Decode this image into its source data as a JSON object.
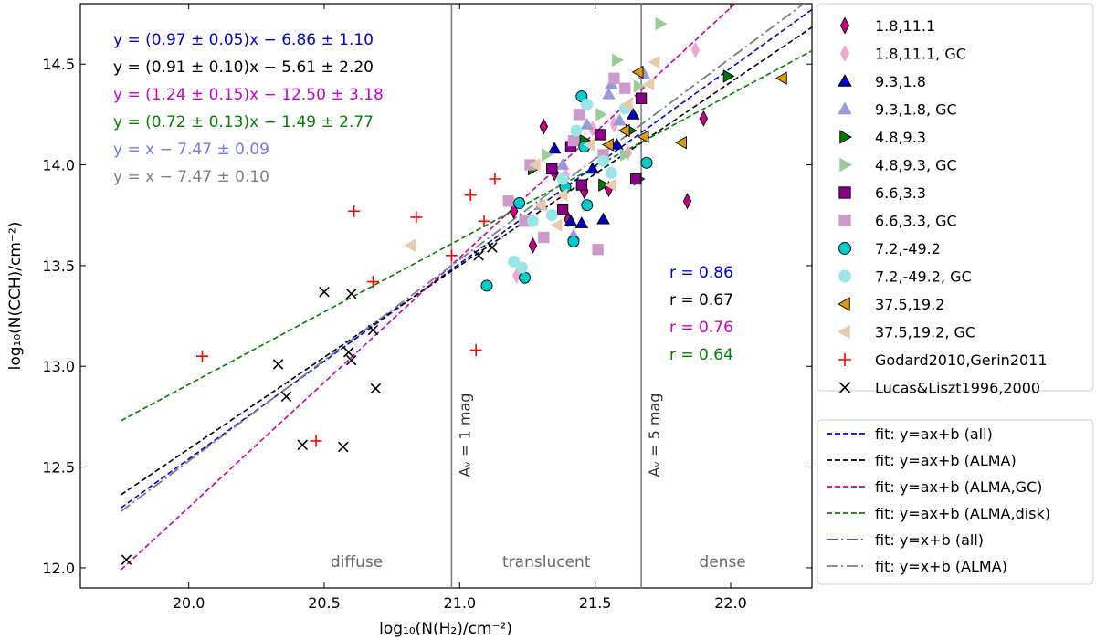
{
  "chart_data": {
    "type": "scatter",
    "title": "",
    "xlabel": "log₁₀(N(H₂)/cm⁻²)",
    "ylabel": "log₁₀(N(CCH)/cm⁻²)",
    "xlim": [
      19.6,
      22.3
    ],
    "ylim": [
      11.9,
      14.8
    ],
    "xticks": [
      "20.0",
      "20.5",
      "21.0",
      "21.5",
      "22.0"
    ],
    "yticks": [
      "12.0",
      "12.5",
      "13.0",
      "13.5",
      "14.0",
      "14.5"
    ],
    "xtick_values": [
      20.0,
      20.5,
      21.0,
      21.5,
      22.0
    ],
    "ytick_values": [
      12.0,
      12.5,
      13.0,
      13.5,
      14.0,
      14.5
    ],
    "vlines": [
      {
        "x": 20.97,
        "label": "Aᵥ = 1 mag"
      },
      {
        "x": 21.67,
        "label": "Aᵥ = 5 mag"
      }
    ],
    "regions": [
      {
        "label": "diffuse",
        "x": 20.62
      },
      {
        "label": "translucent",
        "x": 21.32
      },
      {
        "label": "dense",
        "x": 21.97
      }
    ],
    "equations": [
      {
        "text": "y = (0.97 ± 0.05)x − 6.86 ± 1.10",
        "color": "#0000dd"
      },
      {
        "text": "y = (0.91 ± 0.10)x − 5.61 ± 2.20",
        "color": "#000000"
      },
      {
        "text": "y = (1.24 ± 0.15)x − 12.50 ± 3.18",
        "color": "#cc00cc"
      },
      {
        "text": "y = (0.72 ± 0.13)x − 1.49 ± 2.77",
        "color": "#008000"
      },
      {
        "text": "y = x − 7.47 ± 0.09",
        "color": "#7777ee"
      },
      {
        "text": "y = x − 7.47 ± 0.10",
        "color": "#808080"
      }
    ],
    "correlations": [
      {
        "text": "r = 0.86",
        "color": "#0000dd"
      },
      {
        "text": "r = 0.67",
        "color": "#000000"
      },
      {
        "text": "r = 0.76",
        "color": "#cc00cc"
      },
      {
        "text": "r = 0.64",
        "color": "#008000"
      }
    ],
    "fits": [
      {
        "name": "fit: y=ax+b (all)",
        "slope": 0.97,
        "intercept": -6.86,
        "color": "#0000dd",
        "style": "dashed",
        "x_range": [
          19.75,
          22.3
        ]
      },
      {
        "name": "fit: y=ax+b (ALMA)",
        "slope": 0.91,
        "intercept": -5.61,
        "color": "#000000",
        "style": "dashed",
        "x_range": [
          19.75,
          22.3
        ]
      },
      {
        "name": "fit: y=ax+b (ALMA,GC)",
        "slope": 1.24,
        "intercept": -12.5,
        "color": "#cc0099",
        "style": "dashed",
        "x_range": [
          19.75,
          22.3
        ]
      },
      {
        "name": "fit: y=ax+b (ALMA,disk)",
        "slope": 0.72,
        "intercept": -1.49,
        "color": "#008000",
        "style": "dashed",
        "x_range": [
          19.75,
          22.3
        ]
      },
      {
        "name": "fit: y=x+b (all)",
        "slope": 1.0,
        "intercept": -7.47,
        "color": "#3333cc",
        "style": "dashdot",
        "x_range": [
          19.75,
          22.3
        ]
      },
      {
        "name": "fit: y=x+b (ALMA)",
        "slope": 1.0,
        "intercept": -7.47,
        "color": "#808080",
        "style": "dashdot",
        "x_range": [
          19.75,
          22.3
        ]
      }
    ],
    "series": [
      {
        "name": "1.8,11.1",
        "marker": "diamond",
        "fill": "#cc0088",
        "stroke": "#000000",
        "points": [
          [
            21.31,
            14.19
          ],
          [
            21.2,
            13.77
          ],
          [
            21.46,
            13.87
          ],
          [
            21.84,
            13.82
          ],
          [
            21.9,
            14.23
          ],
          [
            21.27,
            13.6
          ],
          [
            21.4,
            13.73
          ],
          [
            21.55,
            13.88
          ],
          [
            21.35,
            13.96
          ]
        ]
      },
      {
        "name": "1.8,11.1, GC",
        "marker": "diamond",
        "fill": "#f0a8d0",
        "stroke": "#f0a8d0",
        "points": [
          [
            21.87,
            14.57
          ],
          [
            21.21,
            13.45
          ],
          [
            21.49,
            14.18
          ],
          [
            21.57,
            14.2
          ],
          [
            21.62,
            14.06
          ],
          [
            21.39,
            13.95
          ],
          [
            21.46,
            14.3
          ]
        ]
      },
      {
        "name": "9.3,1.8",
        "marker": "triangle-up",
        "fill": "#0000cc",
        "stroke": "#000000",
        "points": [
          [
            21.35,
            14.08
          ],
          [
            21.41,
            13.72
          ],
          [
            21.45,
            13.71
          ],
          [
            21.58,
            14.1
          ],
          [
            21.64,
            14.25
          ],
          [
            21.49,
            13.98
          ],
          [
            21.53,
            13.73
          ]
        ]
      },
      {
        "name": "9.3,1.8, GC",
        "marker": "triangle-up",
        "fill": "#9999dd",
        "stroke": "#9999dd",
        "points": [
          [
            21.55,
            14.35
          ],
          [
            21.47,
            14.2
          ],
          [
            21.59,
            14.22
          ],
          [
            21.3,
            13.8
          ],
          [
            21.42,
            13.65
          ],
          [
            21.56,
            14.4
          ],
          [
            21.68,
            14.45
          ],
          [
            21.38,
            14.0
          ]
        ]
      },
      {
        "name": "4.8,9.3",
        "marker": "triangle-right",
        "fill": "#007700",
        "stroke": "#000000",
        "points": [
          [
            21.99,
            14.44
          ],
          [
            21.63,
            14.17
          ],
          [
            21.53,
            13.9
          ],
          [
            21.27,
            13.98
          ],
          [
            21.46,
            14.12
          ],
          [
            21.66,
            13.93
          ]
        ]
      },
      {
        "name": "4.8,9.3, GC",
        "marker": "triangle-right",
        "fill": "#99cc99",
        "stroke": "#99cc99",
        "points": [
          [
            21.74,
            14.7
          ],
          [
            21.58,
            14.52
          ],
          [
            21.66,
            14.39
          ],
          [
            21.32,
            14.05
          ],
          [
            21.52,
            14.25
          ],
          [
            21.61,
            14.05
          ]
        ]
      },
      {
        "name": "6.6,3.3",
        "marker": "square",
        "fill": "#880088",
        "stroke": "#000000",
        "points": [
          [
            21.38,
            13.78
          ],
          [
            21.41,
            14.09
          ],
          [
            21.52,
            14.15
          ],
          [
            21.67,
            14.33
          ],
          [
            21.65,
            13.93
          ],
          [
            21.34,
            13.98
          ],
          [
            21.45,
            13.9
          ]
        ]
      },
      {
        "name": "6.6,3.3, GC",
        "marker": "square",
        "fill": "#cc99cc",
        "stroke": "#cc99cc",
        "points": [
          [
            21.24,
            13.72
          ],
          [
            21.51,
            13.58
          ],
          [
            21.31,
            13.64
          ],
          [
            21.26,
            14.0
          ],
          [
            21.44,
            14.25
          ],
          [
            21.57,
            14.43
          ],
          [
            21.61,
            14.38
          ],
          [
            21.53,
            14.05
          ],
          [
            21.42,
            14.12
          ],
          [
            21.18,
            13.82
          ]
        ]
      },
      {
        "name": "7.2,-49.2",
        "marker": "circle",
        "fill": "#00cccc",
        "stroke": "#000000",
        "points": [
          [
            21.1,
            13.4
          ],
          [
            21.24,
            13.44
          ],
          [
            21.22,
            13.81
          ],
          [
            21.45,
            14.34
          ],
          [
            21.42,
            13.62
          ],
          [
            21.47,
            13.8
          ],
          [
            21.69,
            14.01
          ],
          [
            21.39,
            13.89
          ],
          [
            21.46,
            14.09
          ]
        ]
      },
      {
        "name": "7.2,-49.2, GC",
        "marker": "circle",
        "fill": "#99e6e6",
        "stroke": "#99e6e6",
        "points": [
          [
            21.2,
            13.52
          ],
          [
            21.23,
            13.49
          ],
          [
            21.27,
            13.72
          ],
          [
            21.53,
            14.02
          ],
          [
            21.47,
            14.3
          ],
          [
            21.38,
            13.93
          ],
          [
            21.61,
            14.28
          ],
          [
            21.43,
            14.17
          ],
          [
            21.56,
            13.96
          ],
          [
            21.34,
            13.75
          ]
        ]
      },
      {
        "name": "37.5,19.2",
        "marker": "triangle-left",
        "fill": "#dd9911",
        "stroke": "#000000",
        "points": [
          [
            22.19,
            14.43
          ],
          [
            21.82,
            14.11
          ],
          [
            21.66,
            14.46
          ],
          [
            21.61,
            14.17
          ],
          [
            21.68,
            14.14
          ],
          [
            21.55,
            14.1
          ]
        ]
      },
      {
        "name": "37.5,19.2, GC",
        "marker": "triangle-left",
        "fill": "#e6ccaa",
        "stroke": "#e6ccaa",
        "points": [
          [
            20.82,
            13.6
          ],
          [
            21.38,
            13.85
          ],
          [
            21.28,
            14.0
          ],
          [
            21.72,
            14.51
          ],
          [
            21.62,
            14.3
          ],
          [
            21.7,
            14.4
          ],
          [
            21.48,
            14.1
          ],
          [
            21.56,
            13.9
          ],
          [
            21.36,
            13.7
          ],
          [
            21.3,
            13.8
          ]
        ]
      },
      {
        "name": "Godard2010,Gerin2011",
        "marker": "plus",
        "fill": "none",
        "stroke": "#ff0000",
        "points": [
          [
            20.05,
            13.05
          ],
          [
            20.61,
            13.77
          ],
          [
            20.68,
            13.42
          ],
          [
            20.84,
            13.74
          ],
          [
            21.04,
            13.85
          ],
          [
            21.09,
            13.72
          ],
          [
            21.13,
            13.93
          ],
          [
            20.97,
            13.55
          ],
          [
            21.06,
            13.08
          ],
          [
            20.47,
            12.63
          ]
        ]
      },
      {
        "name": "Lucas&Liszt1996,2000",
        "marker": "x",
        "fill": "none",
        "stroke": "#000000",
        "points": [
          [
            19.77,
            12.04
          ],
          [
            20.33,
            13.01
          ],
          [
            20.36,
            12.85
          ],
          [
            20.42,
            12.61
          ],
          [
            20.5,
            13.37
          ],
          [
            20.57,
            12.6
          ],
          [
            20.59,
            13.07
          ],
          [
            20.6,
            13.03
          ],
          [
            20.6,
            13.36
          ],
          [
            20.68,
            13.18
          ],
          [
            20.69,
            12.89
          ],
          [
            21.07,
            13.55
          ],
          [
            21.12,
            13.59
          ]
        ]
      }
    ]
  }
}
